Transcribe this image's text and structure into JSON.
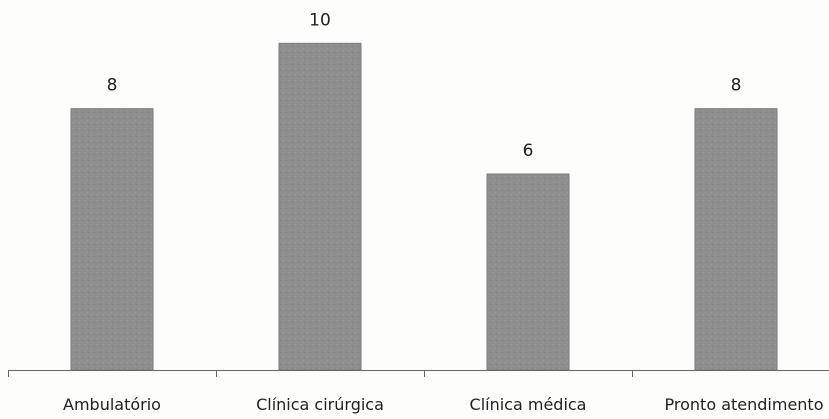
{
  "chart_data": {
    "type": "bar",
    "categories": [
      "Ambulatório",
      "Clínica cirúrgica",
      "Clínica médica",
      "Pronto atendimento"
    ],
    "values": [
      8,
      10,
      6,
      8
    ],
    "data_labels": [
      "8",
      "10",
      "6",
      "8"
    ],
    "title": "",
    "xlabel": "",
    "ylabel": "",
    "ylim": [
      0,
      10.5
    ],
    "grid": false,
    "legend": "none",
    "bar_color": "#8c8c8c",
    "axis_color": "#666666"
  }
}
